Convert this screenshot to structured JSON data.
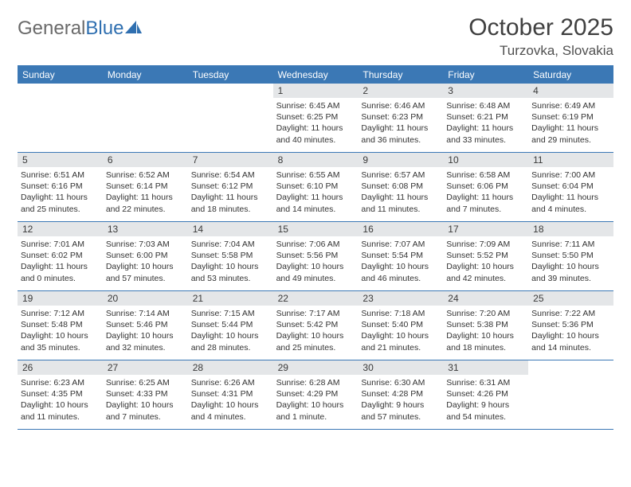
{
  "logo": {
    "text1": "General",
    "text2": "Blue"
  },
  "title": "October 2025",
  "location": "Turzovka, Slovakia",
  "colors": {
    "header_bar": "#3b78b5",
    "daynum_bg": "#e4e6e8",
    "logo_gray": "#6a6a6a",
    "logo_blue": "#2f6fb0",
    "border": "#3b78b5",
    "text": "#333333"
  },
  "weekdays": [
    "Sunday",
    "Monday",
    "Tuesday",
    "Wednesday",
    "Thursday",
    "Friday",
    "Saturday"
  ],
  "weeks": [
    [
      {
        "n": "",
        "sunrise": "",
        "sunset": "",
        "daylight": ""
      },
      {
        "n": "",
        "sunrise": "",
        "sunset": "",
        "daylight": ""
      },
      {
        "n": "",
        "sunrise": "",
        "sunset": "",
        "daylight": ""
      },
      {
        "n": "1",
        "sunrise": "Sunrise: 6:45 AM",
        "sunset": "Sunset: 6:25 PM",
        "daylight": "Daylight: 11 hours and 40 minutes."
      },
      {
        "n": "2",
        "sunrise": "Sunrise: 6:46 AM",
        "sunset": "Sunset: 6:23 PM",
        "daylight": "Daylight: 11 hours and 36 minutes."
      },
      {
        "n": "3",
        "sunrise": "Sunrise: 6:48 AM",
        "sunset": "Sunset: 6:21 PM",
        "daylight": "Daylight: 11 hours and 33 minutes."
      },
      {
        "n": "4",
        "sunrise": "Sunrise: 6:49 AM",
        "sunset": "Sunset: 6:19 PM",
        "daylight": "Daylight: 11 hours and 29 minutes."
      }
    ],
    [
      {
        "n": "5",
        "sunrise": "Sunrise: 6:51 AM",
        "sunset": "Sunset: 6:16 PM",
        "daylight": "Daylight: 11 hours and 25 minutes."
      },
      {
        "n": "6",
        "sunrise": "Sunrise: 6:52 AM",
        "sunset": "Sunset: 6:14 PM",
        "daylight": "Daylight: 11 hours and 22 minutes."
      },
      {
        "n": "7",
        "sunrise": "Sunrise: 6:54 AM",
        "sunset": "Sunset: 6:12 PM",
        "daylight": "Daylight: 11 hours and 18 minutes."
      },
      {
        "n": "8",
        "sunrise": "Sunrise: 6:55 AM",
        "sunset": "Sunset: 6:10 PM",
        "daylight": "Daylight: 11 hours and 14 minutes."
      },
      {
        "n": "9",
        "sunrise": "Sunrise: 6:57 AM",
        "sunset": "Sunset: 6:08 PM",
        "daylight": "Daylight: 11 hours and 11 minutes."
      },
      {
        "n": "10",
        "sunrise": "Sunrise: 6:58 AM",
        "sunset": "Sunset: 6:06 PM",
        "daylight": "Daylight: 11 hours and 7 minutes."
      },
      {
        "n": "11",
        "sunrise": "Sunrise: 7:00 AM",
        "sunset": "Sunset: 6:04 PM",
        "daylight": "Daylight: 11 hours and 4 minutes."
      }
    ],
    [
      {
        "n": "12",
        "sunrise": "Sunrise: 7:01 AM",
        "sunset": "Sunset: 6:02 PM",
        "daylight": "Daylight: 11 hours and 0 minutes."
      },
      {
        "n": "13",
        "sunrise": "Sunrise: 7:03 AM",
        "sunset": "Sunset: 6:00 PM",
        "daylight": "Daylight: 10 hours and 57 minutes."
      },
      {
        "n": "14",
        "sunrise": "Sunrise: 7:04 AM",
        "sunset": "Sunset: 5:58 PM",
        "daylight": "Daylight: 10 hours and 53 minutes."
      },
      {
        "n": "15",
        "sunrise": "Sunrise: 7:06 AM",
        "sunset": "Sunset: 5:56 PM",
        "daylight": "Daylight: 10 hours and 49 minutes."
      },
      {
        "n": "16",
        "sunrise": "Sunrise: 7:07 AM",
        "sunset": "Sunset: 5:54 PM",
        "daylight": "Daylight: 10 hours and 46 minutes."
      },
      {
        "n": "17",
        "sunrise": "Sunrise: 7:09 AM",
        "sunset": "Sunset: 5:52 PM",
        "daylight": "Daylight: 10 hours and 42 minutes."
      },
      {
        "n": "18",
        "sunrise": "Sunrise: 7:11 AM",
        "sunset": "Sunset: 5:50 PM",
        "daylight": "Daylight: 10 hours and 39 minutes."
      }
    ],
    [
      {
        "n": "19",
        "sunrise": "Sunrise: 7:12 AM",
        "sunset": "Sunset: 5:48 PM",
        "daylight": "Daylight: 10 hours and 35 minutes."
      },
      {
        "n": "20",
        "sunrise": "Sunrise: 7:14 AM",
        "sunset": "Sunset: 5:46 PM",
        "daylight": "Daylight: 10 hours and 32 minutes."
      },
      {
        "n": "21",
        "sunrise": "Sunrise: 7:15 AM",
        "sunset": "Sunset: 5:44 PM",
        "daylight": "Daylight: 10 hours and 28 minutes."
      },
      {
        "n": "22",
        "sunrise": "Sunrise: 7:17 AM",
        "sunset": "Sunset: 5:42 PM",
        "daylight": "Daylight: 10 hours and 25 minutes."
      },
      {
        "n": "23",
        "sunrise": "Sunrise: 7:18 AM",
        "sunset": "Sunset: 5:40 PM",
        "daylight": "Daylight: 10 hours and 21 minutes."
      },
      {
        "n": "24",
        "sunrise": "Sunrise: 7:20 AM",
        "sunset": "Sunset: 5:38 PM",
        "daylight": "Daylight: 10 hours and 18 minutes."
      },
      {
        "n": "25",
        "sunrise": "Sunrise: 7:22 AM",
        "sunset": "Sunset: 5:36 PM",
        "daylight": "Daylight: 10 hours and 14 minutes."
      }
    ],
    [
      {
        "n": "26",
        "sunrise": "Sunrise: 6:23 AM",
        "sunset": "Sunset: 4:35 PM",
        "daylight": "Daylight: 10 hours and 11 minutes."
      },
      {
        "n": "27",
        "sunrise": "Sunrise: 6:25 AM",
        "sunset": "Sunset: 4:33 PM",
        "daylight": "Daylight: 10 hours and 7 minutes."
      },
      {
        "n": "28",
        "sunrise": "Sunrise: 6:26 AM",
        "sunset": "Sunset: 4:31 PM",
        "daylight": "Daylight: 10 hours and 4 minutes."
      },
      {
        "n": "29",
        "sunrise": "Sunrise: 6:28 AM",
        "sunset": "Sunset: 4:29 PM",
        "daylight": "Daylight: 10 hours and 1 minute."
      },
      {
        "n": "30",
        "sunrise": "Sunrise: 6:30 AM",
        "sunset": "Sunset: 4:28 PM",
        "daylight": "Daylight: 9 hours and 57 minutes."
      },
      {
        "n": "31",
        "sunrise": "Sunrise: 6:31 AM",
        "sunset": "Sunset: 4:26 PM",
        "daylight": "Daylight: 9 hours and 54 minutes."
      },
      {
        "n": "",
        "sunrise": "",
        "sunset": "",
        "daylight": ""
      }
    ]
  ]
}
